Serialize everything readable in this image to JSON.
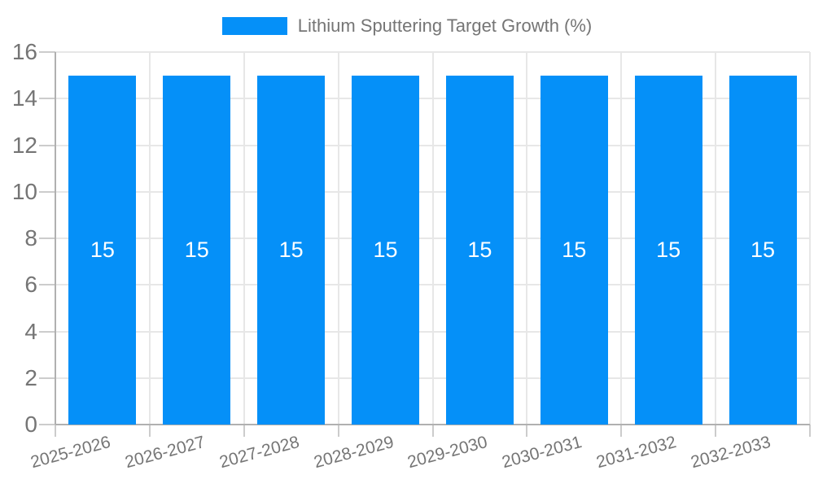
{
  "legend": {
    "label": "Lithium Sputtering Target Growth (%)"
  },
  "chart_data": {
    "type": "bar",
    "title": "Lithium Sputtering Target Growth (%)",
    "categories": [
      "2025-2026",
      "2026-2027",
      "2027-2028",
      "2028-2029",
      "2029-2030",
      "2030-2031",
      "2031-2032",
      "2032-2033"
    ],
    "series": [
      {
        "name": "Lithium Sputtering Target Growth (%)",
        "values": [
          15,
          15,
          15,
          15,
          15,
          15,
          15,
          15
        ]
      }
    ],
    "data_labels": [
      "15",
      "15",
      "15",
      "15",
      "15",
      "15",
      "15",
      "15"
    ],
    "xlabel": "",
    "ylabel": "",
    "ylim": [
      0,
      16
    ],
    "yticks": [
      0,
      2,
      4,
      6,
      8,
      10,
      12,
      14,
      16
    ],
    "grid": true,
    "legend_position": "top-center",
    "x_label_rotation_deg": -15,
    "colors": {
      "bar": "#0590F8",
      "axis_line": "#b0b0b0",
      "gridline": "#e7e7e7",
      "tick_mark": "#cccccc",
      "tick_text": "#757575",
      "bar_label_text": "#ffffff"
    }
  }
}
